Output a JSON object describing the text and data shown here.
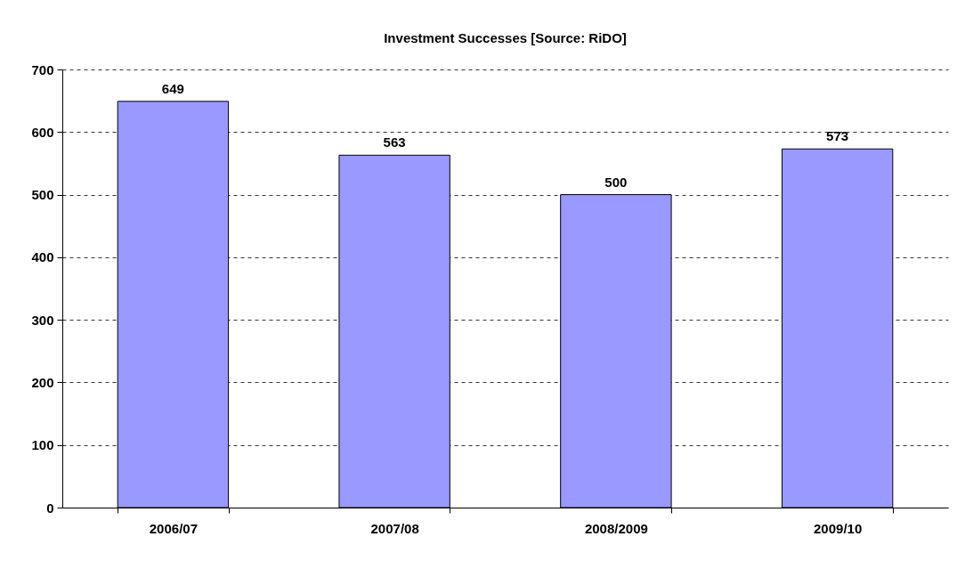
{
  "chart_data": {
    "type": "bar",
    "title": "Investment Successes [Source: RiDO]",
    "categories": [
      "2006/07",
      "2007/08",
      "2008/2009",
      "2009/10"
    ],
    "values": [
      649,
      563,
      500,
      573
    ],
    "color": "#9999ff",
    "ylim": [
      0,
      700
    ],
    "yticks": [
      0,
      100,
      200,
      300,
      400,
      500,
      600,
      700
    ],
    "grid": "y",
    "data_labels": true
  }
}
